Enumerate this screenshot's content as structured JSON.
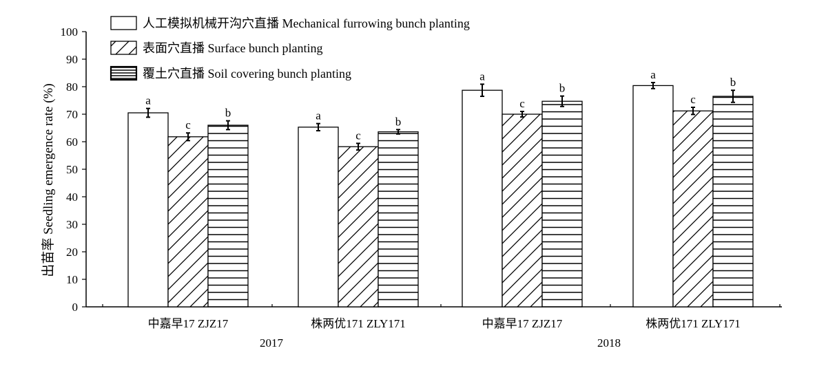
{
  "chart_data": {
    "type": "bar",
    "title": "",
    "ylabel": "出苗率 Seedling emergence rate (%)",
    "xlabel": "",
    "ylim": [
      0,
      100
    ],
    "yticks": [
      0,
      10,
      20,
      30,
      40,
      50,
      60,
      70,
      80,
      90,
      100
    ],
    "grid": false,
    "legend_position": "top-left",
    "categories": [
      "中嘉早17 ZJZ17",
      "株两优171 ZLY171",
      "中嘉早17 ZJZ17",
      "株两优171 ZLY171"
    ],
    "year_groups": [
      {
        "label": "2017",
        "categories": [
          0,
          1
        ]
      },
      {
        "label": "2018",
        "categories": [
          2,
          3
        ]
      }
    ],
    "series": [
      {
        "name": "人工模拟机械开沟穴直播 Mechanical furrowing bunch planting",
        "pattern": "open",
        "values": [
          70.5,
          65.3,
          78.7,
          80.4
        ],
        "errors": [
          1.6,
          1.3,
          2.2,
          1.1
        ],
        "letters": [
          "a",
          "a",
          "a",
          "a"
        ]
      },
      {
        "name": "表面穴直播 Surface bunch planting",
        "pattern": "diagonal",
        "values": [
          61.8,
          58.2,
          70.0,
          71.2
        ],
        "errors": [
          1.4,
          1.2,
          1.0,
          1.3
        ],
        "letters": [
          "c",
          "c",
          "c",
          "c"
        ]
      },
      {
        "name": "覆土穴直播 Soil covering bunch planting",
        "pattern": "horizontal",
        "values": [
          66.0,
          63.6,
          74.7,
          76.5
        ],
        "errors": [
          1.6,
          0.8,
          1.9,
          2.2
        ],
        "letters": [
          "b",
          "b",
          "b",
          "b"
        ]
      }
    ]
  }
}
